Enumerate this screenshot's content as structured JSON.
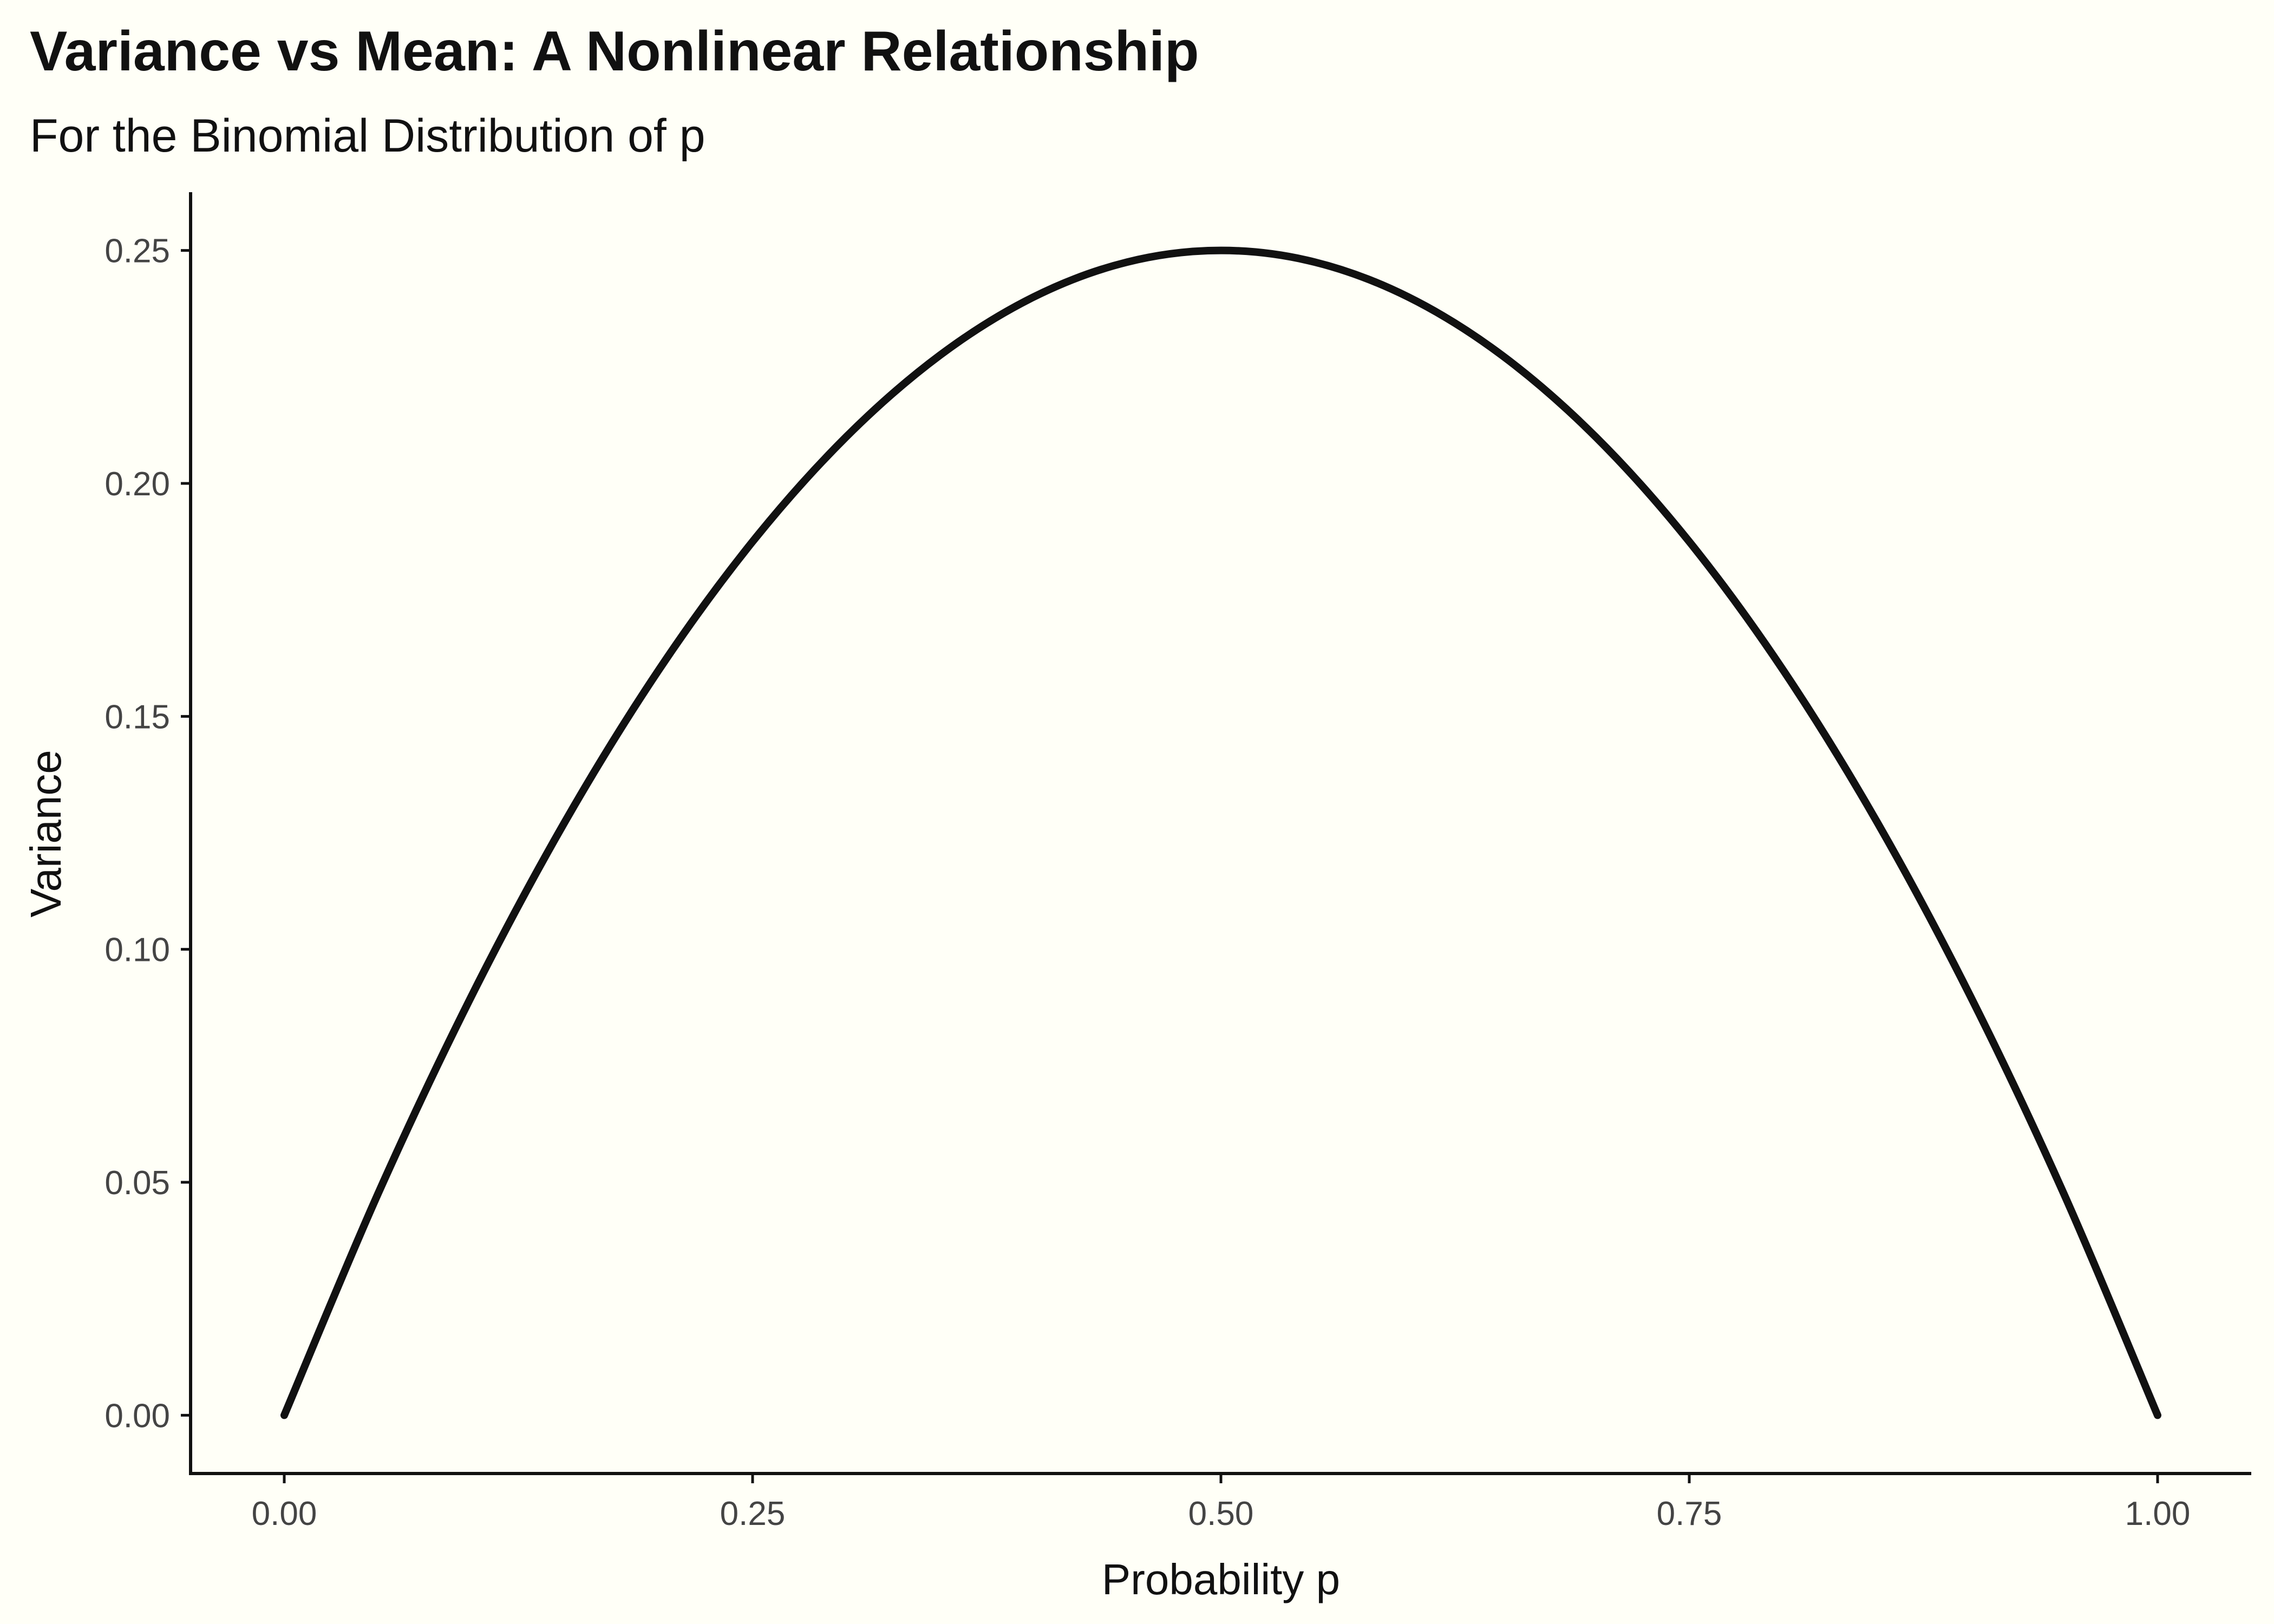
{
  "chart_data": {
    "type": "line",
    "title": "Variance vs Mean: A Nonlinear Relationship",
    "subtitle": "For the Binomial Distribution of p",
    "xlabel": "Probability p",
    "ylabel": "Variance",
    "xlim": [
      -0.05,
      1.05
    ],
    "ylim": [
      -0.0125,
      0.2625
    ],
    "x_ticks": [
      0.0,
      0.25,
      0.5,
      0.75,
      1.0
    ],
    "x_tick_labels": [
      "0.00",
      "0.25",
      "0.50",
      "0.75",
      "1.00"
    ],
    "y_ticks": [
      0.0,
      0.05,
      0.1,
      0.15,
      0.2,
      0.25
    ],
    "y_tick_labels": [
      "0.00",
      "0.05",
      "0.10",
      "0.15",
      "0.20",
      "0.25"
    ],
    "grid": false,
    "series": [
      {
        "x": [
          0.0,
          0.05,
          0.1,
          0.15,
          0.2,
          0.25,
          0.3,
          0.35,
          0.4,
          0.45,
          0.5,
          0.55,
          0.6,
          0.65,
          0.7,
          0.75,
          0.8,
          0.85,
          0.9,
          0.95,
          1.0
        ],
        "values": [
          0.0,
          0.0475,
          0.09,
          0.1275,
          0.16,
          0.1875,
          0.21,
          0.2275,
          0.24,
          0.2475,
          0.25,
          0.2475,
          0.24,
          0.2275,
          0.21,
          0.1875,
          0.16,
          0.1275,
          0.09,
          0.0475,
          0.0
        ],
        "color": "#111111"
      }
    ],
    "background_color": "#FFFFF7"
  }
}
